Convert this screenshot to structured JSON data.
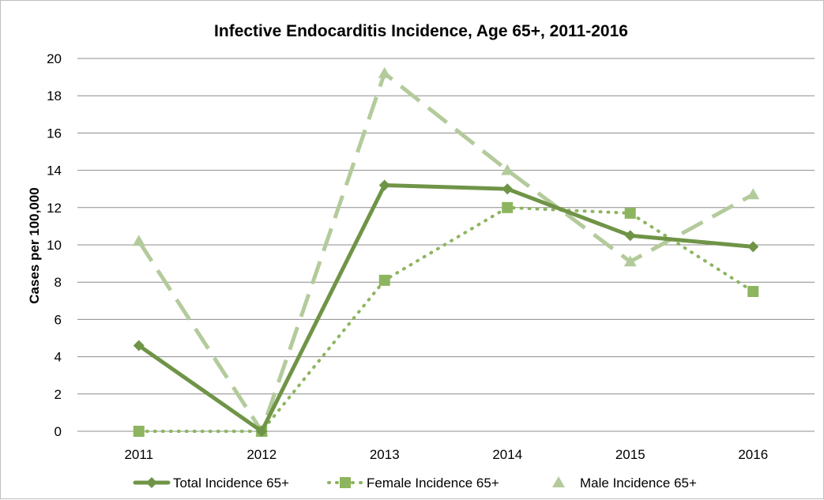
{
  "chart_data": {
    "type": "line",
    "title": "Infective Endocarditis Incidence, Age 65+, 2011-2016",
    "xlabel": "",
    "ylabel": "Cases per 100,000",
    "categories": [
      "2011",
      "2012",
      "2013",
      "2014",
      "2015",
      "2016"
    ],
    "ylim": [
      0,
      20
    ],
    "yticks": [
      0,
      2,
      4,
      6,
      8,
      10,
      12,
      14,
      16,
      18,
      20
    ],
    "grid": true,
    "legend_position": "bottom",
    "series": [
      {
        "name": "Total Incidence 65+",
        "values": [
          4.6,
          0,
          13.2,
          13.0,
          10.5,
          9.9
        ],
        "color": "#6f9447",
        "line_style": "solid",
        "marker": "diamond"
      },
      {
        "name": "Female Incidence 65+",
        "values": [
          0,
          0,
          8.1,
          12.0,
          11.7,
          7.5
        ],
        "color": "#8db55f",
        "line_style": "dotted",
        "marker": "square"
      },
      {
        "name": "Male Incidence 65+",
        "values": [
          10.2,
          0,
          19.2,
          14.0,
          9.1,
          12.7
        ],
        "color": "#b3cb9b",
        "line_style": "dashed",
        "marker": "triangle"
      }
    ]
  }
}
